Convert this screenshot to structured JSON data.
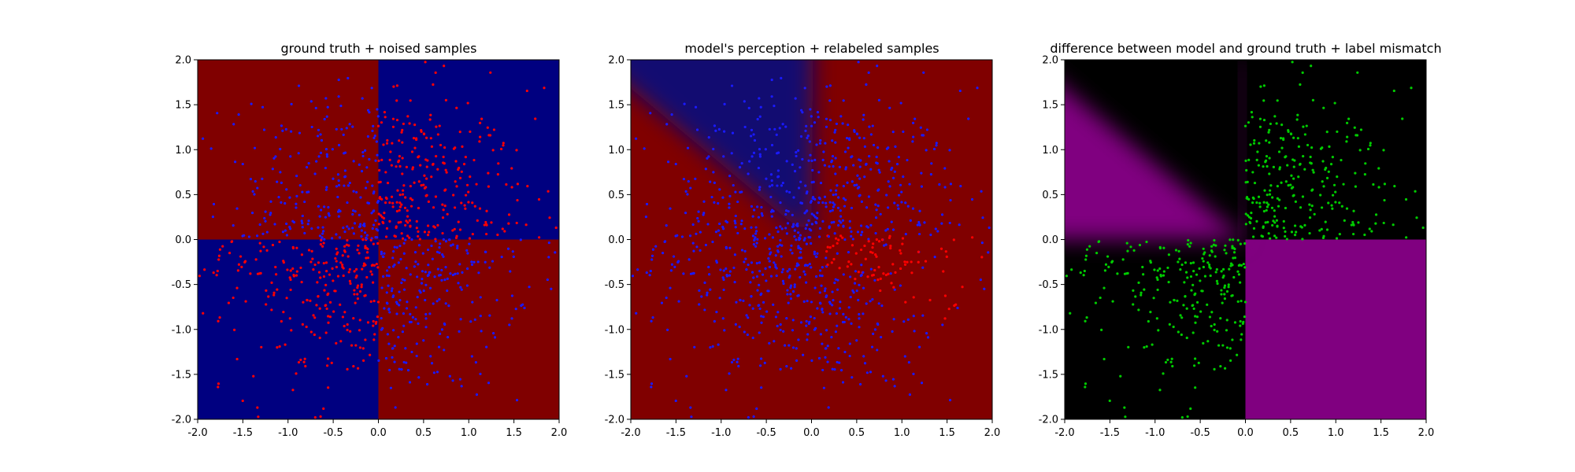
{
  "chart_data": [
    {
      "type": "scatter",
      "title": "ground truth + noised samples",
      "xlim": [
        -2.0,
        2.0
      ],
      "ylim": [
        -2.0,
        2.0
      ],
      "xticks": [
        "-2.0",
        "-1.5",
        "-1.0",
        "-0.5",
        "0.0",
        "0.5",
        "1.0",
        "1.5",
        "2.0"
      ],
      "yticks": [
        "2.0",
        "1.5",
        "1.0",
        "0.5",
        "0.0",
        "-0.5",
        "-1.0",
        "-1.5",
        "-2.0"
      ],
      "background": "quadrant checkerboard: top-left and bottom-right dark red, top-right and bottom-left dark blue",
      "regions": [
        {
          "x": [
            -2.0,
            0.0
          ],
          "y": [
            0.0,
            2.0
          ],
          "color": "#800000"
        },
        {
          "x": [
            0.0,
            2.0
          ],
          "y": [
            0.0,
            2.0
          ],
          "color": "#000080"
        },
        {
          "x": [
            -2.0,
            0.0
          ],
          "y": [
            -2.0,
            0.0
          ],
          "color": "#000080"
        },
        {
          "x": [
            0.0,
            2.0
          ],
          "y": [
            -2.0,
            0.0
          ],
          "color": "#800000"
        }
      ],
      "series": [
        {
          "color": "#ff0000",
          "point_count": 480,
          "region": "top-right and bottom-left quadrants",
          "sampling": "clustered toward center"
        },
        {
          "color": "#1a1aff",
          "point_count": 480,
          "region": "top-left and bottom-right quadrants",
          "sampling": "clustered toward center"
        }
      ],
      "grid": false
    },
    {
      "type": "scatter",
      "title": "model's perception + relabeled samples",
      "xlim": [
        -2.0,
        2.0
      ],
      "ylim": [
        -2.0,
        2.0
      ],
      "xticks": [
        "-2.0",
        "-1.5",
        "-1.0",
        "-0.5",
        "0.0",
        "0.5",
        "1.0",
        "1.5",
        "2.0"
      ],
      "yticks": [
        "2.0",
        "1.5",
        "1.0",
        "0.5",
        "0.0",
        "-0.5",
        "-1.0",
        "-1.5",
        "-2.0"
      ],
      "background": "mostly dark red; blue wedge in upper-left between y-axis and diagonal from origin",
      "colors": {
        "background": "#800000",
        "wedge": "#0a0a78"
      },
      "series": [
        {
          "color": "#1a1aff",
          "point_count": 960,
          "region": "everywhere except lower-right cluster",
          "sampling": "clustered toward center"
        },
        {
          "color": "#ff0000",
          "point_count": 160,
          "region": "lower-right near (0.8, -0.5)",
          "sampling": "cluster"
        }
      ],
      "grid": false
    },
    {
      "type": "scatter",
      "title": "difference between model and ground truth + label mismatch",
      "xlim": [
        -2.0,
        2.0
      ],
      "ylim": [
        -2.0,
        2.0
      ],
      "xticks": [
        "-2.0",
        "-1.5",
        "-1.0",
        "-0.5",
        "0.0",
        "0.5",
        "1.0",
        "1.5",
        "2.0"
      ],
      "yticks": [
        "2.0",
        "1.5",
        "1.0",
        "0.5",
        "0.0",
        "-0.5",
        "-1.0",
        "-1.5",
        "-2.0"
      ],
      "background": "black where model matches; purple where it differs (lower-right and upper-left outside wedge)",
      "colors": {
        "match": "#000000",
        "mismatch": "#800080"
      },
      "series": [
        {
          "color": "#00cc00",
          "point_count": 480,
          "region": "top-right and bottom-left quadrants",
          "sampling": "clustered toward center"
        }
      ],
      "grid": false
    }
  ]
}
